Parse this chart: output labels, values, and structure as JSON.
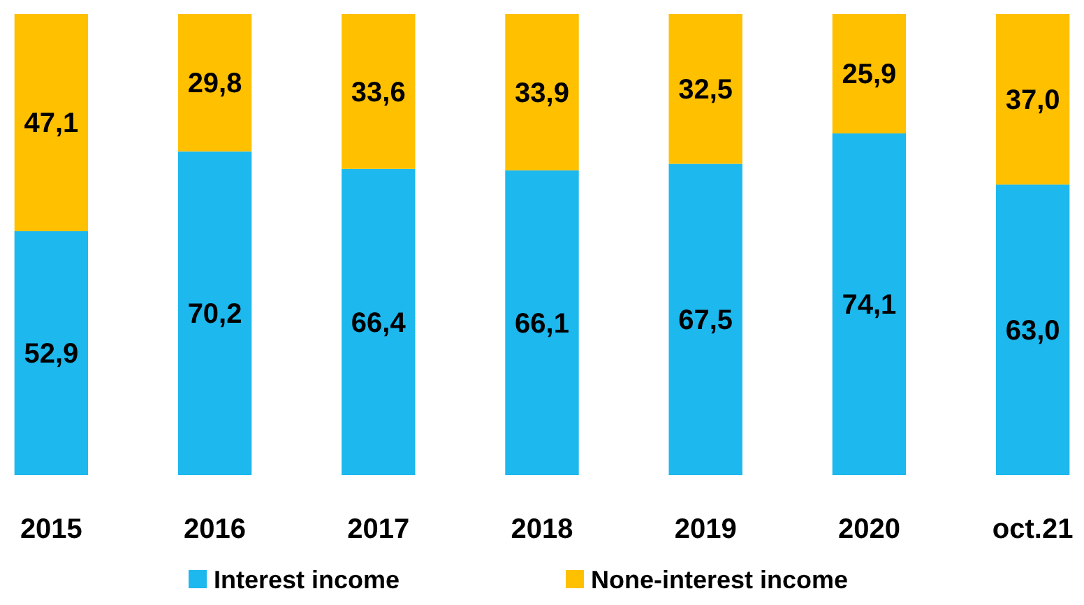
{
  "chart_data": {
    "type": "bar",
    "stacked": true,
    "categories": [
      "2015",
      "2016",
      "2017",
      "2018",
      "2019",
      "2020",
      "oct.21"
    ],
    "series": [
      {
        "name": "Interest income",
        "color": "#1cb8ee",
        "values": [
          52.9,
          70.2,
          66.4,
          66.1,
          67.5,
          74.1,
          63.0
        ],
        "value_labels": [
          "52,9",
          "70,2",
          "66,4",
          "66,1",
          "67,5",
          "74,1",
          "63,0"
        ]
      },
      {
        "name": "None-interest income",
        "color": "#ffc000",
        "values": [
          47.1,
          29.8,
          33.6,
          33.9,
          32.5,
          25.9,
          37.0
        ],
        "value_labels": [
          "47,1",
          "29,8",
          "33,6",
          "33,9",
          "32,5",
          "25,9",
          "37,0"
        ]
      }
    ],
    "legend": "bottom",
    "grid": false
  }
}
